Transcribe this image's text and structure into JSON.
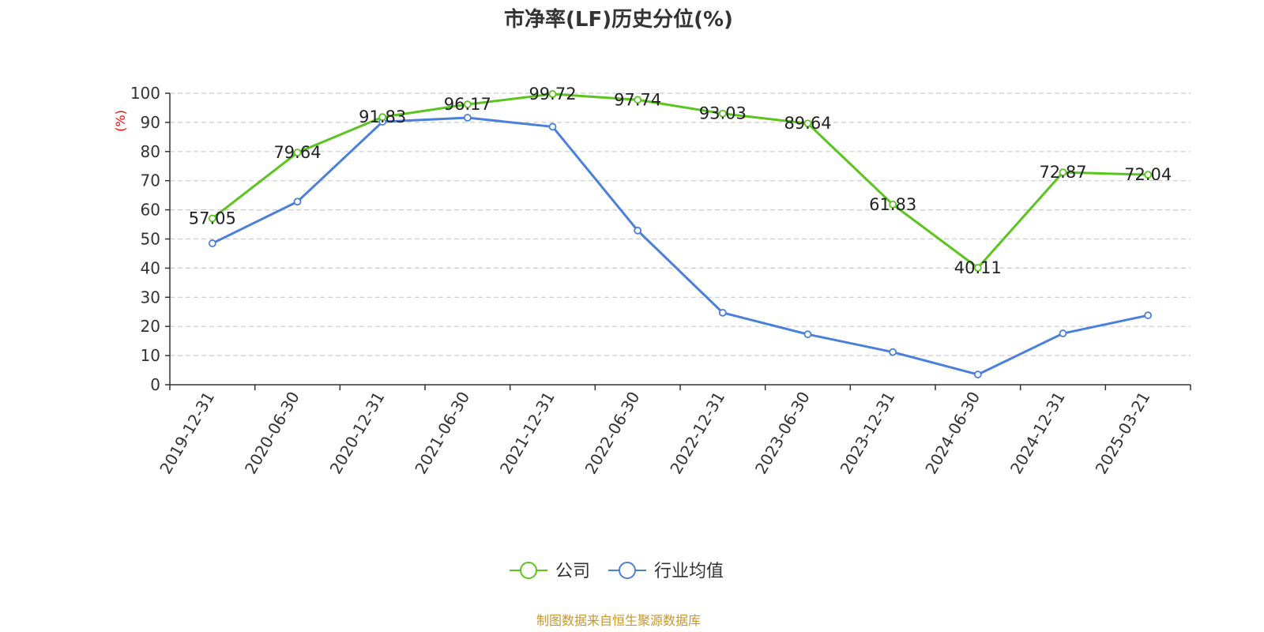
{
  "source_note": "制图数据来自恒生聚源数据库",
  "colors": {
    "company": "#5bc41f",
    "industry": "#4a80d9",
    "unit_label": "#ff0000",
    "source_note": "#c8962a",
    "grid": "#cccccc",
    "axis": "#333333"
  },
  "chart_data": {
    "type": "line",
    "title": "市净率(LF)历史分位(%)",
    "ylabel": "(%)",
    "ylim": [
      0,
      100
    ],
    "yticks": [
      0,
      10,
      20,
      30,
      40,
      50,
      60,
      70,
      80,
      90,
      100
    ],
    "grid": true,
    "legend_position": "bottom-center",
    "x": [
      "2019-12-31",
      "2020-06-30",
      "2020-12-31",
      "2021-06-30",
      "2021-12-31",
      "2022-06-30",
      "2022-12-31",
      "2023-06-30",
      "2023-12-31",
      "2024-06-30",
      "2024-12-31",
      "2025-03-21"
    ],
    "series": [
      {
        "name": "公司",
        "color": "#5bc41f",
        "show_labels": true,
        "values": [
          57.05,
          79.64,
          91.83,
          96.17,
          99.72,
          97.74,
          93.03,
          89.64,
          61.83,
          40.11,
          72.87,
          72.04
        ]
      },
      {
        "name": "行业均值",
        "color": "#4a80d9",
        "show_labels": false,
        "values": [
          48.5,
          62.8,
          90.2,
          91.6,
          88.5,
          52.9,
          24.7,
          17.3,
          11.2,
          3.5,
          17.6,
          23.8
        ]
      }
    ]
  }
}
